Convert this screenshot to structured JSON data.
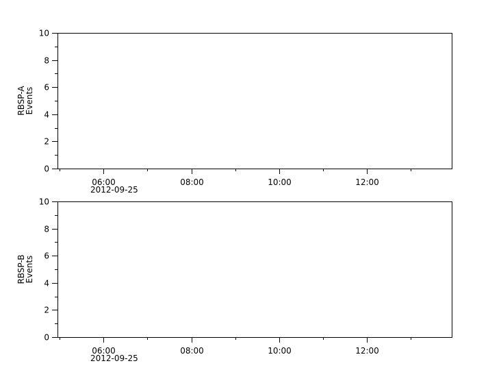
{
  "chart_data": [
    {
      "type": "line",
      "ylabel": [
        "RBSP-A",
        "Events"
      ],
      "ylim": [
        0,
        10
      ],
      "yticks": [
        0,
        2,
        4,
        6,
        8,
        10
      ],
      "xlim": [
        "2012-09-25 04:57",
        "2012-09-25 13:56"
      ],
      "xticks": [
        "06:00",
        "08:00",
        "10:00",
        "12:00"
      ],
      "xtick_hours": [
        6,
        8,
        10,
        12
      ],
      "xminor_hours": [
        5,
        7,
        9,
        11,
        13
      ],
      "date_label": "2012-09-25",
      "series": [],
      "grid": false
    },
    {
      "type": "line",
      "ylabel": [
        "RBSP-B",
        "Events"
      ],
      "ylim": [
        0,
        10
      ],
      "yticks": [
        0,
        2,
        4,
        6,
        8,
        10
      ],
      "xlim": [
        "2012-09-25 04:57",
        "2012-09-25 13:56"
      ],
      "xticks": [
        "06:00",
        "08:00",
        "10:00",
        "12:00"
      ],
      "xtick_hours": [
        6,
        8,
        10,
        12
      ],
      "xminor_hours": [
        5,
        7,
        9,
        11,
        13
      ],
      "date_label": "2012-09-25",
      "series": [],
      "grid": false
    }
  ]
}
